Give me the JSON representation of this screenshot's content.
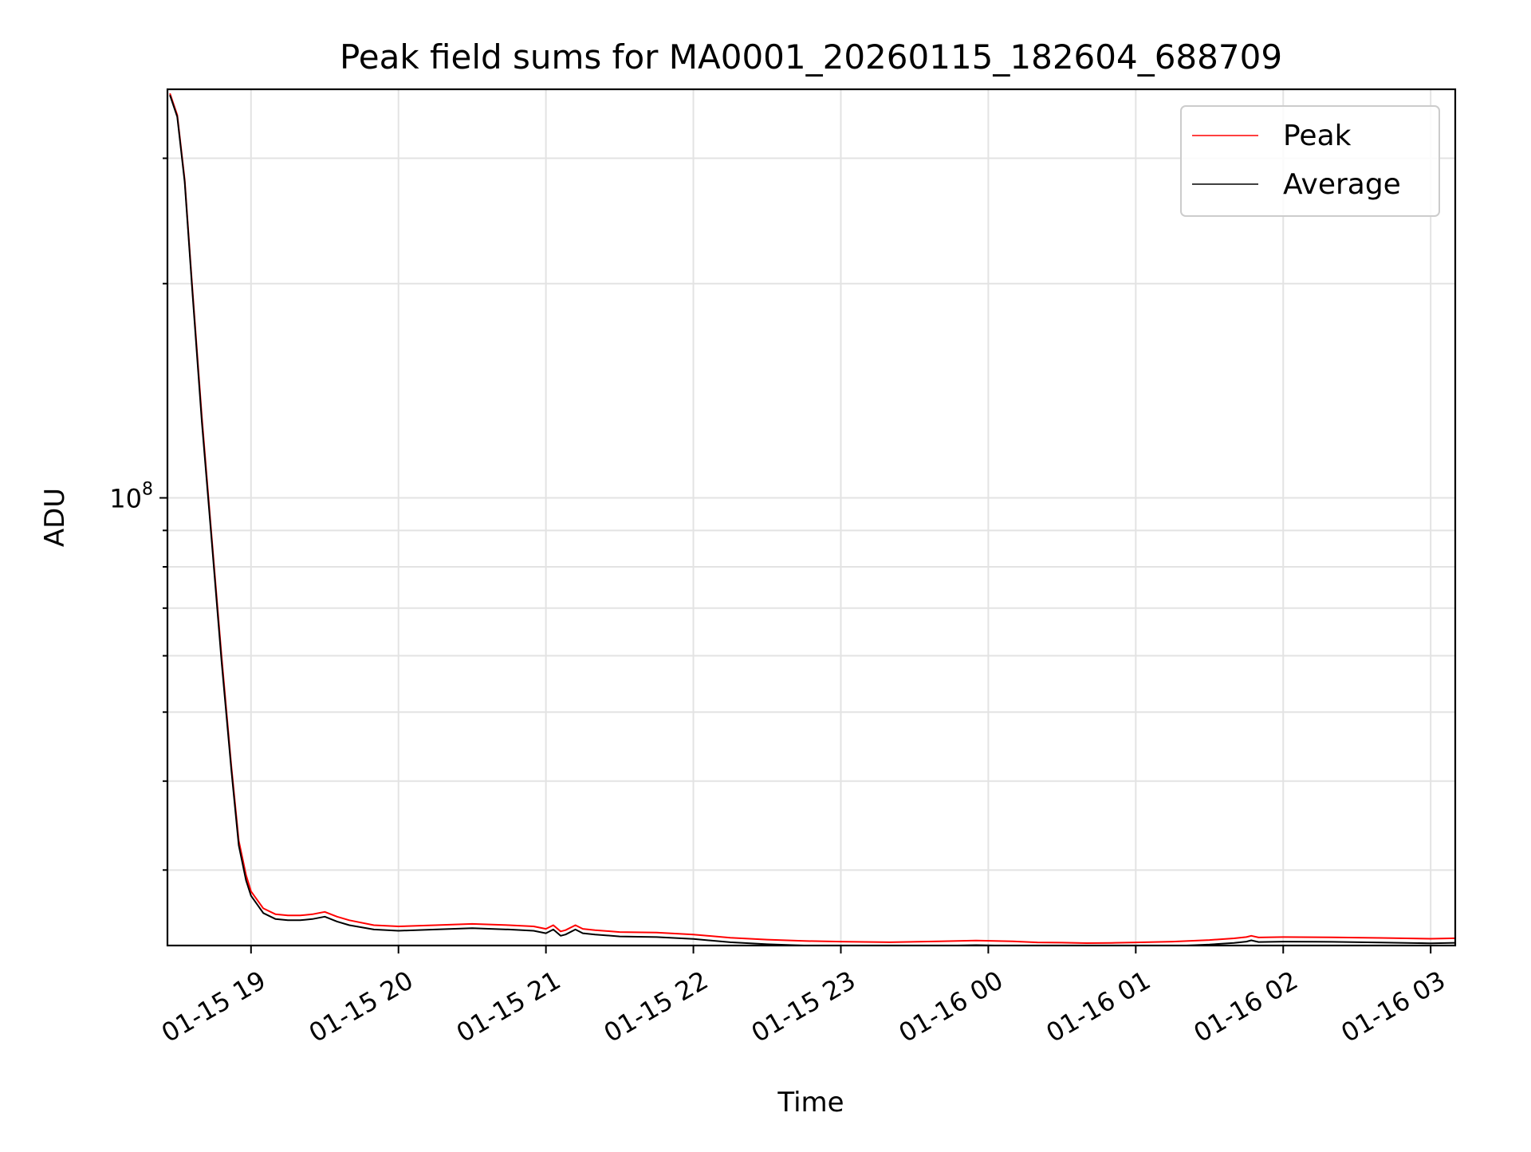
{
  "chart_data": {
    "type": "line",
    "title": "Peak field sums for MA0001_20260115_182604_688709",
    "xlabel": "Time",
    "ylabel": "ADU",
    "y_scale": "log",
    "y_tick_labels": [
      {
        "value": 100000000,
        "base": "10",
        "exponent": "8"
      }
    ],
    "x_tick_labels": [
      "01-15 19",
      "01-15 20",
      "01-15 21",
      "01-15 22",
      "01-15 23",
      "01-16 00",
      "01-16 01",
      "01-16 02",
      "01-16 03"
    ],
    "xlim": [
      "2026-01-15 18:26",
      "2026-01-16 03:10"
    ],
    "ylim": [
      23500000,
      375000000
    ],
    "grid": true,
    "legend_position": "upper right",
    "series": [
      {
        "name": "Peak",
        "color": "#ff0000",
        "x": [
          "2026-01-15 18:27",
          "2026-01-15 18:30",
          "2026-01-15 18:33",
          "2026-01-15 18:36",
          "2026-01-15 18:40",
          "2026-01-15 18:44",
          "2026-01-15 18:48",
          "2026-01-15 18:52",
          "2026-01-15 18:55",
          "2026-01-15 18:58",
          "2026-01-15 19:00",
          "2026-01-15 19:05",
          "2026-01-15 19:10",
          "2026-01-15 19:15",
          "2026-01-15 19:20",
          "2026-01-15 19:25",
          "2026-01-15 19:30",
          "2026-01-15 19:35",
          "2026-01-15 19:40",
          "2026-01-15 19:50",
          "2026-01-15 20:00",
          "2026-01-15 20:15",
          "2026-01-15 20:30",
          "2026-01-15 20:45",
          "2026-01-15 20:55",
          "2026-01-15 21:00",
          "2026-01-15 21:03",
          "2026-01-15 21:06",
          "2026-01-15 21:08",
          "2026-01-15 21:12",
          "2026-01-15 21:15",
          "2026-01-15 21:20",
          "2026-01-15 21:30",
          "2026-01-15 21:45",
          "2026-01-15 22:00",
          "2026-01-15 22:15",
          "2026-01-15 22:30",
          "2026-01-15 22:45",
          "2026-01-15 23:00",
          "2026-01-15 23:20",
          "2026-01-15 23:40",
          "2026-01-15 23:55",
          "2026-01-16 00:10",
          "2026-01-16 00:20",
          "2026-01-16 00:30",
          "2026-01-16 00:40",
          "2026-01-16 00:50",
          "2026-01-16 01:00",
          "2026-01-16 01:15",
          "2026-01-16 01:30",
          "2026-01-16 01:40",
          "2026-01-16 01:45",
          "2026-01-16 01:47",
          "2026-01-16 01:50",
          "2026-01-16 02:00",
          "2026-01-16 02:20",
          "2026-01-16 02:40",
          "2026-01-16 03:00",
          "2026-01-16 03:10"
        ],
        "y": [
          370000000,
          345000000,
          280000000,
          200000000,
          130000000,
          88000000,
          60000000,
          42000000,
          33000000,
          29500000,
          28000000,
          26500000,
          26000000,
          25900000,
          25900000,
          26000000,
          26200000,
          25800000,
          25500000,
          25100000,
          25000000,
          25100000,
          25200000,
          25100000,
          25000000,
          24800000,
          25100000,
          24600000,
          24700000,
          25100000,
          24800000,
          24700000,
          24550000,
          24500000,
          24350000,
          24100000,
          23950000,
          23850000,
          23800000,
          23750000,
          23820000,
          23880000,
          23820000,
          23740000,
          23720000,
          23680000,
          23700000,
          23740000,
          23800000,
          23920000,
          24050000,
          24150000,
          24250000,
          24120000,
          24150000,
          24130000,
          24080000,
          24020000,
          24060000
        ]
      },
      {
        "name": "Average",
        "color": "#000000",
        "x": [
          "2026-01-15 18:27",
          "2026-01-15 18:30",
          "2026-01-15 18:33",
          "2026-01-15 18:36",
          "2026-01-15 18:40",
          "2026-01-15 18:44",
          "2026-01-15 18:48",
          "2026-01-15 18:52",
          "2026-01-15 18:55",
          "2026-01-15 18:58",
          "2026-01-15 19:00",
          "2026-01-15 19:05",
          "2026-01-15 19:10",
          "2026-01-15 19:15",
          "2026-01-15 19:20",
          "2026-01-15 19:25",
          "2026-01-15 19:30",
          "2026-01-15 19:35",
          "2026-01-15 19:40",
          "2026-01-15 19:50",
          "2026-01-15 20:00",
          "2026-01-15 20:15",
          "2026-01-15 20:30",
          "2026-01-15 20:45",
          "2026-01-15 20:55",
          "2026-01-15 21:00",
          "2026-01-15 21:03",
          "2026-01-15 21:06",
          "2026-01-15 21:08",
          "2026-01-15 21:12",
          "2026-01-15 21:15",
          "2026-01-15 21:20",
          "2026-01-15 21:30",
          "2026-01-15 21:45",
          "2026-01-15 22:00",
          "2026-01-15 22:15",
          "2026-01-15 22:30",
          "2026-01-15 22:45",
          "2026-01-15 23:00",
          "2026-01-15 23:20",
          "2026-01-15 23:40",
          "2026-01-15 23:55",
          "2026-01-16 00:10",
          "2026-01-16 00:20",
          "2026-01-16 00:30",
          "2026-01-16 00:40",
          "2026-01-16 00:50",
          "2026-01-16 01:00",
          "2026-01-16 01:15",
          "2026-01-16 01:30",
          "2026-01-16 01:40",
          "2026-01-16 01:45",
          "2026-01-16 01:47",
          "2026-01-16 01:50",
          "2026-01-16 02:00",
          "2026-01-16 02:20",
          "2026-01-16 02:40",
          "2026-01-16 03:00",
          "2026-01-16 03:10"
        ],
        "y": [
          368000000,
          343000000,
          278000000,
          198000000,
          128000000,
          87000000,
          59000000,
          41500000,
          32500000,
          29000000,
          27600000,
          26100000,
          25600000,
          25500000,
          25500000,
          25600000,
          25800000,
          25400000,
          25100000,
          24750000,
          24650000,
          24750000,
          24850000,
          24750000,
          24650000,
          24450000,
          24750000,
          24250000,
          24350000,
          24750000,
          24450000,
          24350000,
          24200000,
          24150000,
          24000000,
          23750000,
          23600000,
          23500000,
          23450000,
          23400000,
          23470000,
          23530000,
          23470000,
          23390000,
          23370000,
          23330000,
          23350000,
          23390000,
          23450000,
          23570000,
          23700000,
          23800000,
          23900000,
          23770000,
          23800000,
          23780000,
          23730000,
          23670000,
          23710000
        ]
      }
    ]
  }
}
